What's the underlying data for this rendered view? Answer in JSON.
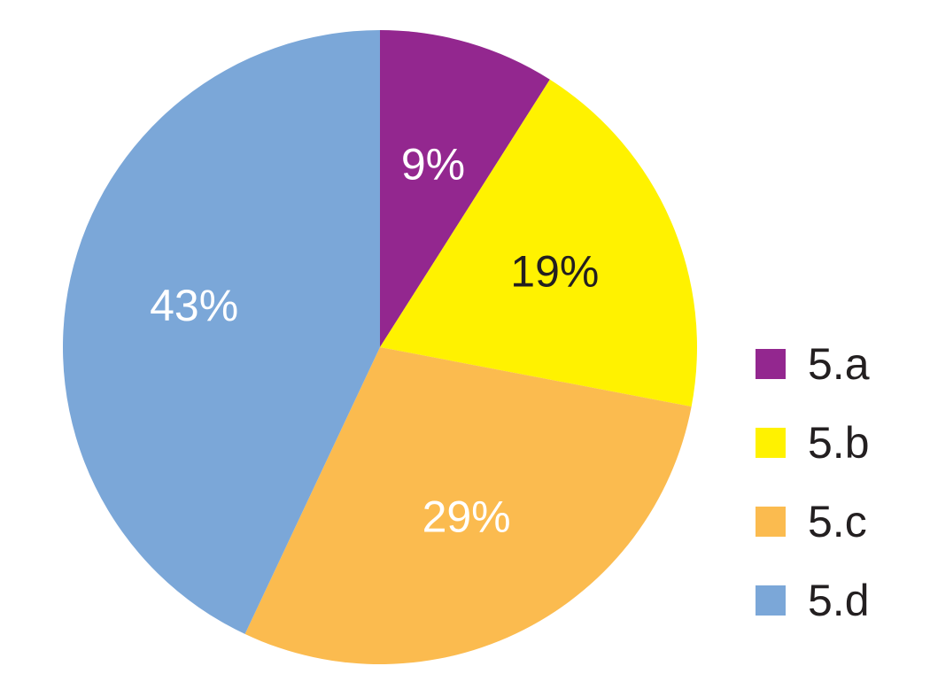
{
  "chart_data": {
    "type": "pie",
    "categories": [
      "5.a",
      "5.b",
      "5.c",
      "5.d"
    ],
    "values": [
      9,
      19,
      29,
      43
    ],
    "value_labels": [
      "9%",
      "19%",
      "29%",
      "43%"
    ],
    "colors": [
      "#93278f",
      "#fff200",
      "#fbbb4f",
      "#7ba7d8"
    ],
    "label_colors": [
      "#ffffff",
      "#231f20",
      "#ffffff",
      "#ffffff"
    ],
    "legend": "right"
  }
}
